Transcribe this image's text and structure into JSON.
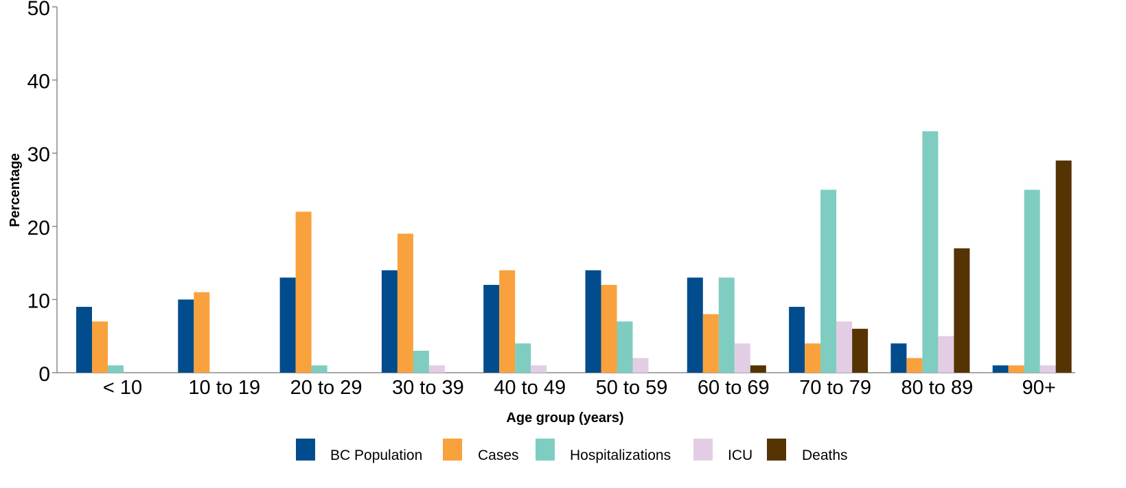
{
  "chart_data": {
    "type": "bar",
    "xlabel": "Age group (years)",
    "ylabel": "Percentage",
    "ylim": [
      0,
      50
    ],
    "yticks": [
      0,
      10,
      20,
      30,
      40,
      50
    ],
    "grid": false,
    "legend_position": "bottom",
    "categories": [
      "< 10",
      "10 to 19",
      "20 to 29",
      "30 to 39",
      "40 to 49",
      "50 to 59",
      "60 to 69",
      "70 to 79",
      "80 to 89",
      "90+"
    ],
    "series": [
      {
        "name": "BC Population",
        "color": "#004c8c",
        "values": [
          9,
          10,
          13,
          14,
          12,
          14,
          13,
          9,
          4,
          1
        ]
      },
      {
        "name": "Cases",
        "color": "#f9a13c",
        "values": [
          7,
          11,
          22,
          19,
          14,
          12,
          8,
          4,
          2,
          1
        ]
      },
      {
        "name": "Hospitalizations",
        "color": "#7ecdc0",
        "values": [
          1,
          0,
          1,
          3,
          4,
          7,
          13,
          25,
          33,
          25
        ]
      },
      {
        "name": "ICU",
        "color": "#e2cde4",
        "values": [
          0,
          0,
          0,
          1,
          1,
          2,
          4,
          7,
          5,
          1
        ]
      },
      {
        "name": "Deaths",
        "color": "#553303",
        "values": [
          0,
          0,
          0,
          0,
          0,
          0,
          1,
          6,
          17,
          29
        ]
      }
    ]
  }
}
